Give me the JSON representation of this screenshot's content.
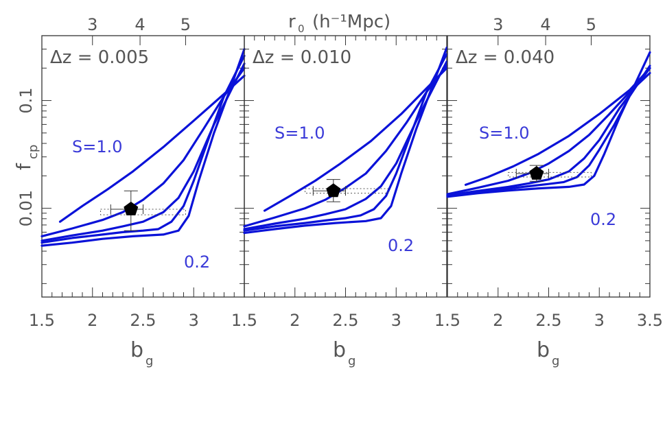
{
  "figure": {
    "top_axis_label": "r",
    "top_axis_sub": "0",
    "top_axis_units": "(h⁻¹Mpc)",
    "ylabel": "f",
    "ylabel_sub": "cp",
    "xlabel": "b",
    "xlabel_sub": "g",
    "curve_label_high": "S=1.0",
    "curve_label_low": "0.2",
    "colors": {
      "curves": "#0a12d8",
      "labels": "#3a3ad8",
      "marker": "#000000"
    }
  },
  "chart_data": [
    {
      "type": "line",
      "panel_title": "Δz = 0.005",
      "xlim": [
        1.5,
        3.5
      ],
      "ylim": [
        0.0015,
        0.4
      ],
      "yscale": "log",
      "x_ticklabels": [
        "1.5",
        "2",
        "2.5",
        "3"
      ],
      "y_ticklabels": [
        "0.01",
        "0.1"
      ],
      "top_ticklabels": [
        "3",
        "4",
        "5"
      ],
      "top_tick_positions_bg": [
        2.0,
        2.47,
        2.92
      ],
      "series": [
        {
          "x": [
            1.68,
            1.9,
            2.15,
            2.4,
            2.7,
            3.0,
            3.3,
            3.5
          ],
          "y": [
            0.0075,
            0.0105,
            0.015,
            0.022,
            0.037,
            0.065,
            0.115,
            0.17
          ]
        },
        {
          "x": [
            1.5,
            1.8,
            2.1,
            2.3,
            2.5,
            2.7,
            2.9,
            3.1,
            3.3,
            3.5
          ],
          "y": [
            0.0055,
            0.0065,
            0.0078,
            0.0092,
            0.012,
            0.017,
            0.028,
            0.055,
            0.11,
            0.2
          ]
        },
        {
          "x": [
            1.5,
            1.8,
            2.1,
            2.3,
            2.5,
            2.7,
            2.85,
            3.0,
            3.2,
            3.5
          ],
          "y": [
            0.005,
            0.0056,
            0.0062,
            0.0068,
            0.0075,
            0.0092,
            0.0125,
            0.022,
            0.06,
            0.22
          ]
        },
        {
          "x": [
            1.5,
            1.8,
            2.1,
            2.3,
            2.5,
            2.65,
            2.78,
            2.9,
            3.0,
            3.15,
            3.3,
            3.5
          ],
          "y": [
            0.0048,
            0.0053,
            0.0057,
            0.006,
            0.0062,
            0.0064,
            0.0075,
            0.0105,
            0.018,
            0.045,
            0.11,
            0.26
          ]
        },
        {
          "x": [
            1.5,
            1.8,
            2.1,
            2.4,
            2.7,
            2.85,
            2.95,
            3.05,
            3.2,
            3.35,
            3.5
          ],
          "y": [
            0.0045,
            0.0048,
            0.0052,
            0.0055,
            0.0057,
            0.0062,
            0.0085,
            0.018,
            0.05,
            0.12,
            0.3
          ]
        }
      ],
      "point": {
        "x": 2.38,
        "y": 0.0098,
        "x_err": [
          2.18,
          2.5
        ],
        "y_err": [
          0.0062,
          0.0145
        ]
      },
      "dotted_box": {
        "x": [
          2.08,
          2.92
        ],
        "y": [
          0.0087,
          0.0098
        ]
      }
    },
    {
      "type": "line",
      "panel_title": "Δz = 0.010",
      "xlim": [
        1.5,
        3.5
      ],
      "ylim": [
        0.0015,
        0.4
      ],
      "yscale": "log",
      "x_ticklabels": [
        "1.5",
        "2",
        "2.5",
        "3"
      ],
      "y_ticklabels": [],
      "top_ticklabels": [],
      "top_tick_positions_bg": [],
      "series": [
        {
          "x": [
            1.7,
            1.95,
            2.2,
            2.45,
            2.75,
            3.05,
            3.3,
            3.5
          ],
          "y": [
            0.0095,
            0.013,
            0.018,
            0.026,
            0.042,
            0.075,
            0.13,
            0.2
          ]
        },
        {
          "x": [
            1.5,
            1.8,
            2.1,
            2.3,
            2.5,
            2.7,
            2.9,
            3.1,
            3.3,
            3.5
          ],
          "y": [
            0.0068,
            0.0082,
            0.01,
            0.012,
            0.0155,
            0.021,
            0.034,
            0.062,
            0.12,
            0.21
          ]
        },
        {
          "x": [
            1.5,
            1.8,
            2.1,
            2.3,
            2.5,
            2.7,
            2.85,
            3.0,
            3.2,
            3.5
          ],
          "y": [
            0.0064,
            0.0072,
            0.008,
            0.0088,
            0.0098,
            0.0122,
            0.016,
            0.026,
            0.065,
            0.23
          ]
        },
        {
          "x": [
            1.5,
            1.8,
            2.1,
            2.3,
            2.5,
            2.65,
            2.78,
            2.9,
            3.0,
            3.15,
            3.3,
            3.5
          ],
          "y": [
            0.0062,
            0.0068,
            0.0073,
            0.0077,
            0.0081,
            0.0086,
            0.0098,
            0.013,
            0.021,
            0.05,
            0.12,
            0.27
          ]
        },
        {
          "x": [
            1.5,
            1.8,
            2.1,
            2.4,
            2.7,
            2.85,
            2.95,
            3.05,
            3.2,
            3.35,
            3.5
          ],
          "y": [
            0.0059,
            0.0064,
            0.0069,
            0.0073,
            0.0076,
            0.0081,
            0.0105,
            0.021,
            0.055,
            0.13,
            0.31
          ]
        }
      ],
      "point": {
        "x": 2.38,
        "y": 0.0145,
        "x_err": [
          2.18,
          2.5
        ],
        "y_err": [
          0.0115,
          0.0185
        ]
      },
      "dotted_box": {
        "x": [
          2.1,
          2.92
        ],
        "y": [
          0.0138,
          0.0152
        ]
      }
    },
    {
      "type": "line",
      "panel_title": "Δz = 0.040",
      "xlim": [
        1.5,
        3.5
      ],
      "ylim": [
        0.0015,
        0.4
      ],
      "yscale": "log",
      "x_ticklabels": [
        "1.5",
        "2",
        "2.5",
        "3",
        "3.5"
      ],
      "y_ticklabels": [],
      "top_ticklabels": [
        "3",
        "4",
        "5"
      ],
      "top_tick_positions_bg": [
        2.0,
        2.47,
        2.92
      ],
      "series": [
        {
          "x": [
            1.68,
            1.9,
            2.15,
            2.4,
            2.7,
            3.0,
            3.3,
            3.5
          ],
          "y": [
            0.0165,
            0.0195,
            0.0245,
            0.032,
            0.047,
            0.075,
            0.125,
            0.2
          ]
        },
        {
          "x": [
            1.5,
            1.8,
            2.1,
            2.3,
            2.5,
            2.7,
            2.9,
            3.1,
            3.3,
            3.5
          ],
          "y": [
            0.0135,
            0.0155,
            0.018,
            0.021,
            0.026,
            0.034,
            0.048,
            0.075,
            0.12,
            0.18
          ]
        },
        {
          "x": [
            1.5,
            1.8,
            2.1,
            2.3,
            2.5,
            2.7,
            2.85,
            3.0,
            3.2,
            3.5
          ],
          "y": [
            0.0132,
            0.0145,
            0.0158,
            0.017,
            0.0185,
            0.022,
            0.029,
            0.043,
            0.085,
            0.2
          ]
        },
        {
          "x": [
            1.5,
            1.8,
            2.1,
            2.3,
            2.5,
            2.65,
            2.78,
            2.9,
            3.0,
            3.15,
            3.3,
            3.5
          ],
          "y": [
            0.013,
            0.0142,
            0.0152,
            0.016,
            0.0168,
            0.0175,
            0.0195,
            0.025,
            0.035,
            0.06,
            0.11,
            0.21
          ]
        },
        {
          "x": [
            1.5,
            1.8,
            2.1,
            2.4,
            2.7,
            2.85,
            2.95,
            3.05,
            3.2,
            3.35,
            3.5
          ],
          "y": [
            0.0128,
            0.0138,
            0.0146,
            0.0153,
            0.0158,
            0.0166,
            0.02,
            0.032,
            0.07,
            0.14,
            0.28
          ]
        }
      ],
      "point": {
        "x": 2.38,
        "y": 0.021,
        "x_err": [
          2.18,
          2.5
        ],
        "y_err": [
          0.0178,
          0.025
        ]
      },
      "dotted_box": {
        "x": [
          2.1,
          2.92
        ],
        "y": [
          0.0195,
          0.0215
        ]
      }
    }
  ]
}
